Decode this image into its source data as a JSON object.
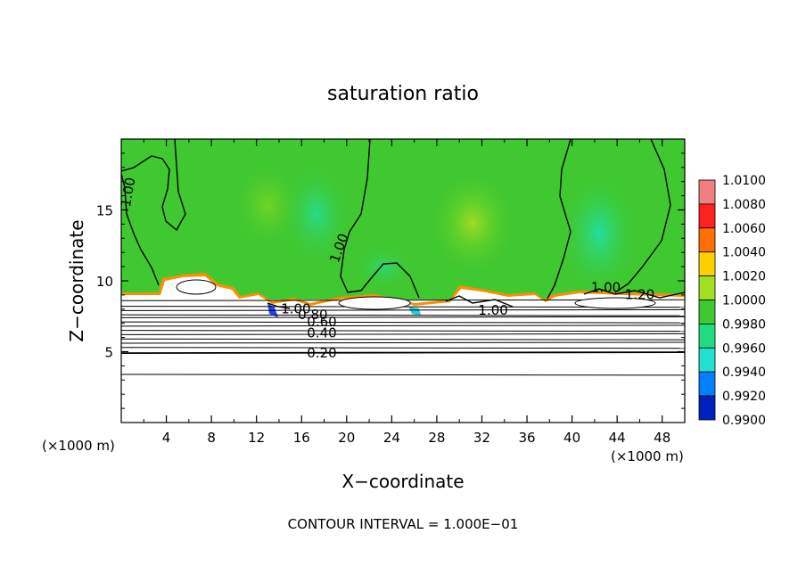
{
  "chart_data": {
    "type": "heatmap",
    "title": "saturation ratio",
    "xlabel": "X−coordinate",
    "ylabel": "Z−coordinate",
    "x_unit_left": "(×1000 m)",
    "x_unit_right": "(×1000 m)",
    "footer": "CONTOUR INTERVAL = 1.000E−01",
    "xlim": [
      0,
      50
    ],
    "ylim": [
      0,
      20
    ],
    "x_ticks": [
      4,
      8,
      12,
      16,
      20,
      24,
      28,
      32,
      36,
      40,
      44,
      48
    ],
    "y_ticks": [
      5,
      10,
      15
    ],
    "colorbar": {
      "min": 0.99,
      "max": 1.01,
      "labels": [
        "1.0100",
        "1.0080",
        "1.0060",
        "1.0040",
        "1.0020",
        "1.0000",
        "0.9980",
        "0.9960",
        "0.9940",
        "0.9920",
        "0.9900"
      ],
      "colors": [
        "#f08080",
        "#ff2020",
        "#ff7000",
        "#ffd000",
        "#a0e020",
        "#40c830",
        "#20dc80",
        "#20e0d0",
        "#0080ff",
        "#0020c0",
        "#6020a0"
      ]
    },
    "contour_labels": [
      {
        "text": "1.00",
        "x": 1.0,
        "y": 16.2
      },
      {
        "text": "1.00",
        "x": 19.7,
        "y": 12.2
      },
      {
        "text": "1.00",
        "x": 43.0,
        "y": 9.2
      },
      {
        "text": "1.20",
        "x": 46.0,
        "y": 8.7
      },
      {
        "text": "1.00",
        "x": 33.0,
        "y": 7.6
      },
      {
        "text": "1.00",
        "x": 15.5,
        "y": 7.7
      },
      {
        "text": "0.80",
        "x": 17.0,
        "y": 7.3
      },
      {
        "text": "0.60",
        "x": 17.8,
        "y": 6.8
      },
      {
        "text": "0.40",
        "x": 17.8,
        "y": 6.0
      },
      {
        "text": "0.20",
        "x": 17.8,
        "y": 4.6
      }
    ],
    "stable_layer_contours_z": [
      8.6,
      8.2,
      7.9,
      7.6,
      7.4,
      7.1,
      6.8,
      6.5,
      6.2,
      5.9,
      5.6,
      5.3,
      4.9,
      3.4
    ],
    "fields": {
      "upper_layer": "saturation ratio ~1.000–1.002 above z≈9",
      "cloud_base": "undersaturated (<0.99) below z≈9"
    }
  }
}
